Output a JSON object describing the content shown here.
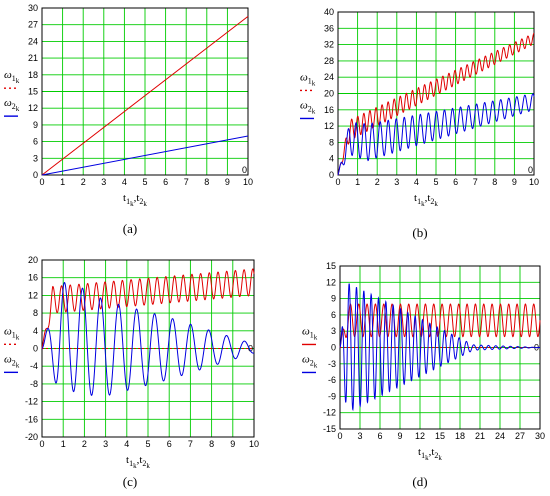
{
  "chart_data": [
    {
      "type": "line",
      "panel": "(a)",
      "caption": "(a)",
      "xlim": [
        0,
        10
      ],
      "ylim": [
        0,
        30
      ],
      "xticks": [
        "0",
        "1",
        "2",
        "3",
        "4",
        "5",
        "6",
        "7",
        "8",
        "9",
        "10"
      ],
      "yticks": [
        "0",
        "3",
        "6",
        "9",
        "12",
        "15",
        "18",
        "21",
        "24",
        "27",
        "30"
      ],
      "end_marker": "0",
      "grid": true,
      "xlabel": {
        "main": "t",
        "sub1": "1",
        "subsub1": "k",
        "sep": ",t",
        "sub2": "2",
        "subsub2": "k"
      },
      "legend": [
        {
          "symbol": "ω",
          "sub": "1",
          "subsub": "k",
          "style": "dotted",
          "color": "#e00000"
        },
        {
          "symbol": "ω",
          "sub": "2",
          "subsub": "k",
          "style": "solid",
          "color": "#0000e0"
        }
      ],
      "series": [
        {
          "id": "w1",
          "color": "#e00000",
          "x": [
            0,
            10
          ],
          "y": [
            0,
            28.5
          ]
        },
        {
          "id": "w2",
          "color": "#0000e0",
          "x": [
            0,
            10
          ],
          "y": [
            0,
            7
          ]
        }
      ]
    },
    {
      "type": "line",
      "panel": "(b)",
      "caption": "(b)",
      "xlim": [
        0,
        10
      ],
      "ylim": [
        0,
        40
      ],
      "xticks": [
        "0",
        "1",
        "2",
        "3",
        "4",
        "5",
        "6",
        "7",
        "8",
        "9",
        "10"
      ],
      "yticks": [
        "0",
        "4",
        "8",
        "12",
        "16",
        "20",
        "24",
        "28",
        "32",
        "36",
        "40"
      ],
      "end_marker": "0",
      "grid": true,
      "xlabel": {
        "main": "t",
        "sub1": "1",
        "subsub1": "k",
        "sep": ",t",
        "sub2": "2",
        "subsub2": "k"
      },
      "legend": [
        {
          "symbol": "ω",
          "sub": "1",
          "subsub": "k",
          "style": "dotted",
          "color": "#e00000"
        },
        {
          "symbol": "ω",
          "sub": "2",
          "subsub": "k",
          "style": "solid",
          "color": "#0000e0"
        }
      ],
      "series": [
        {
          "id": "w1",
          "color": "#e00000",
          "trend": [
            [
              0,
              0
            ],
            [
              0.6,
              11
            ],
            [
              10,
              33.5
            ]
          ],
          "amp": [
            [
              0,
              0
            ],
            [
              0.6,
              2.5
            ],
            [
              10,
              1.3
            ]
          ],
          "period": 0.31
        },
        {
          "id": "w2",
          "color": "#0000e0",
          "trend": [
            [
              0,
              0
            ],
            [
              0.6,
              9
            ],
            [
              1.5,
              8
            ],
            [
              10,
              18
            ]
          ],
          "amp": [
            [
              0,
              0
            ],
            [
              0.6,
              4
            ],
            [
              1.5,
              4.5
            ],
            [
              10,
              2
            ]
          ],
          "period": 0.41
        }
      ]
    },
    {
      "type": "line",
      "panel": "(c)",
      "caption": "(c)",
      "xlim": [
        0,
        10
      ],
      "ylim": [
        -20,
        20
      ],
      "xticks": [
        "0",
        "1",
        "2",
        "3",
        "4",
        "5",
        "6",
        "7",
        "8",
        "9",
        "10"
      ],
      "yticks": [
        "-20",
        "-16",
        "-12",
        "-8",
        "-4",
        "0",
        "4",
        "8",
        "12",
        "16",
        "20"
      ],
      "end_marker": "0",
      "grid": true,
      "xlabel": {
        "main": "t",
        "sub1": "1",
        "subsub1": "k",
        "sep": ",t",
        "sub2": "2",
        "subsub2": "k"
      },
      "legend": [
        {
          "symbol": "ω",
          "sub": "1",
          "subsub": "k",
          "style": "dotted",
          "color": "#e00000"
        },
        {
          "symbol": "ω",
          "sub": "2",
          "subsub": "k",
          "style": "solid",
          "color": "#0000e0"
        }
      ],
      "series": [
        {
          "id": "w1",
          "color": "#e00000",
          "trend": [
            [
              0,
              0
            ],
            [
              0.5,
              11
            ],
            [
              10,
              15
            ]
          ],
          "amp": [
            [
              0,
              0
            ],
            [
              0.5,
              3
            ],
            [
              10,
              3
            ]
          ],
          "period": 0.41
        },
        {
          "id": "w2",
          "color": "#0000e0",
          "trend": [
            [
              0,
              0
            ],
            [
              1,
              3
            ],
            [
              3,
              0
            ],
            [
              10,
              0
            ]
          ],
          "amp": [
            [
              0,
              0
            ],
            [
              0.8,
              12
            ],
            [
              2,
              12
            ],
            [
              6,
              7
            ],
            [
              10,
              1
            ]
          ],
          "period": 0.85
        }
      ]
    },
    {
      "type": "line",
      "panel": "(d)",
      "caption": "(d)",
      "xlim": [
        0,
        30
      ],
      "ylim": [
        -15,
        15
      ],
      "xticks": [
        "0",
        "3",
        "6",
        "9",
        "12",
        "15",
        "18",
        "21",
        "24",
        "27",
        "30"
      ],
      "yticks": [
        "-15",
        "-12",
        "-9",
        "-6",
        "-3",
        "0",
        "3",
        "6",
        "9",
        "12",
        "15"
      ],
      "end_marker": "0",
      "grid": true,
      "xlabel": {
        "main": "t",
        "sub1": "1",
        "subsub1": "k",
        "sep": ",t",
        "sub2": "2",
        "subsub2": "k"
      },
      "legend": [
        {
          "symbol": "ω",
          "sub": "1",
          "subsub": "k",
          "style": "solid",
          "color": "#e00000"
        },
        {
          "symbol": "ω",
          "sub": "2",
          "subsub": "k",
          "style": "solid",
          "color": "#0000e0"
        }
      ],
      "series": [
        {
          "id": "w1",
          "color": "#e00000",
          "trend": [
            [
              0,
              0
            ],
            [
              1,
              5
            ],
            [
              30,
              5
            ]
          ],
          "amp": [
            [
              0,
              0
            ],
            [
              1,
              3
            ],
            [
              30,
              3
            ]
          ],
          "period": 1.25
        },
        {
          "id": "w2",
          "color": "#0000e0",
          "trend": [
            [
              0,
              0
            ],
            [
              1,
              0
            ],
            [
              30,
              0
            ]
          ],
          "amp": [
            [
              0,
              0
            ],
            [
              1,
              12
            ],
            [
              20,
              0.5
            ],
            [
              30,
              0
            ]
          ],
          "period": 1.1
        }
      ]
    }
  ]
}
